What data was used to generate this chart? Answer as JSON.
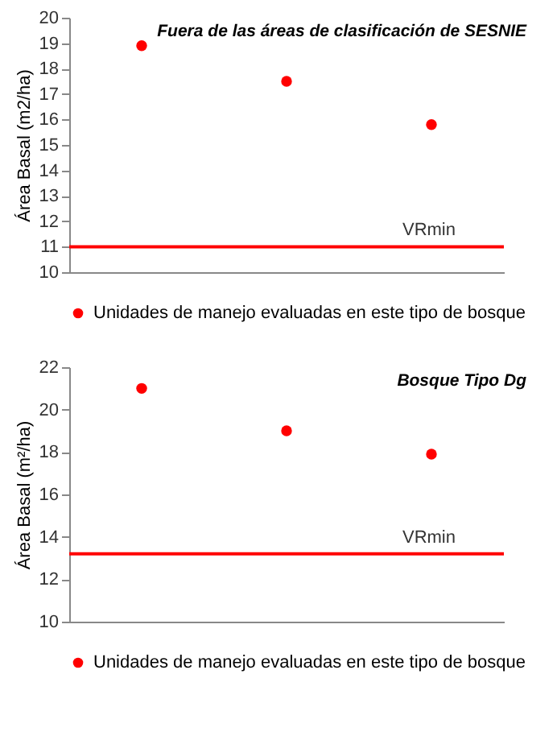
{
  "chart_data": [
    {
      "type": "scatter",
      "title": "Fuera de las áreas de clasificación de SESNIE",
      "ylabel": "Área Basal (m2/ha)",
      "categories": [
        null,
        null,
        null
      ],
      "series": [
        {
          "name": "Unidades de manejo evaluadas en este tipo de bosque",
          "color": "#ff0000",
          "values": [
            18.9,
            17.5,
            15.8
          ]
        }
      ],
      "ylim": [
        10,
        20
      ],
      "yticks": [
        10,
        11,
        12,
        13,
        14,
        15,
        16,
        17,
        18,
        19,
        20
      ],
      "ref_lines": [
        {
          "axis": "y",
          "value": 11,
          "label": "VRmin",
          "color": "#ff0000"
        }
      ],
      "legend": "bottom",
      "marker": "circle",
      "grid": false
    },
    {
      "type": "scatter",
      "title": "Bosque Tipo Dg",
      "ylabel": "Área Basal (m²/ha)",
      "categories": [
        null,
        null,
        null
      ],
      "series": [
        {
          "name": "Unidades de manejo evaluadas en este tipo de bosque",
          "color": "#ff0000",
          "values": [
            21.0,
            19.0,
            17.9
          ]
        }
      ],
      "ylim": [
        10,
        22
      ],
      "yticks": [
        10,
        12,
        14,
        16,
        18,
        20,
        22
      ],
      "ref_lines": [
        {
          "axis": "y",
          "value": 13.2,
          "label": "VRmin",
          "color": "#ff0000"
        }
      ],
      "legend": "bottom",
      "marker": "circle",
      "grid": false
    }
  ]
}
